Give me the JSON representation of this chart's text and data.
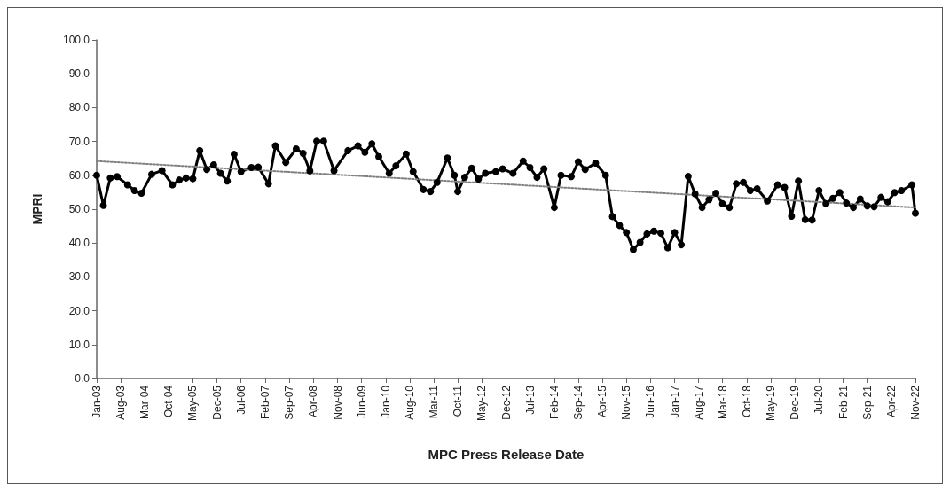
{
  "chart_data": {
    "type": "line",
    "xlabel": "MPC Press Release Date",
    "ylabel": "MPRI",
    "xlim": [
      "2003-01",
      "2022-11"
    ],
    "xticks": [
      {
        "value": "2003-01",
        "label": "Jan-03"
      },
      {
        "value": "2003-08",
        "label": "Aug-03"
      },
      {
        "value": "2004-03",
        "label": "Mar-04"
      },
      {
        "value": "2004-10",
        "label": "Oct-04"
      },
      {
        "value": "2005-05",
        "label": "May-05"
      },
      {
        "value": "2005-12",
        "label": "Dec-05"
      },
      {
        "value": "2006-07",
        "label": "Jul-06"
      },
      {
        "value": "2007-02",
        "label": "Feb-07"
      },
      {
        "value": "2007-09",
        "label": "Sep-07"
      },
      {
        "value": "2008-04",
        "label": "Apr-08"
      },
      {
        "value": "2008-11",
        "label": "Nov-08"
      },
      {
        "value": "2009-06",
        "label": "Jun-09"
      },
      {
        "value": "2010-01",
        "label": "Jan-10"
      },
      {
        "value": "2010-08",
        "label": "Aug-10"
      },
      {
        "value": "2011-03",
        "label": "Mar-11"
      },
      {
        "value": "2011-10",
        "label": "Oct-11"
      },
      {
        "value": "2012-05",
        "label": "May-12"
      },
      {
        "value": "2012-12",
        "label": "Dec-12"
      },
      {
        "value": "2013-07",
        "label": "Jul-13"
      },
      {
        "value": "2014-02",
        "label": "Feb-14"
      },
      {
        "value": "2014-09",
        "label": "Sep-14"
      },
      {
        "value": "2015-04",
        "label": "Apr-15"
      },
      {
        "value": "2015-11",
        "label": "Nov-15"
      },
      {
        "value": "2016-06",
        "label": "Jun-16"
      },
      {
        "value": "2017-01",
        "label": "Jan-17"
      },
      {
        "value": "2017-08",
        "label": "Aug-17"
      },
      {
        "value": "2018-03",
        "label": "Mar-18"
      },
      {
        "value": "2018-10",
        "label": "Oct-18"
      },
      {
        "value": "2019-05",
        "label": "May-19"
      },
      {
        "value": "2019-12",
        "label": "Dec-19"
      },
      {
        "value": "2020-07",
        "label": "Jul-20"
      },
      {
        "value": "2021-02",
        "label": "Feb-21"
      },
      {
        "value": "2021-09",
        "label": "Sep-21"
      },
      {
        "value": "2022-04",
        "label": "Apr-22"
      },
      {
        "value": "2022-11",
        "label": "Nov-22"
      }
    ],
    "ylim": [
      0,
      100
    ],
    "yticks": [
      {
        "value": 0,
        "label": "0.0"
      },
      {
        "value": 10,
        "label": "10.0"
      },
      {
        "value": 20,
        "label": "20.0"
      },
      {
        "value": 30,
        "label": "30.0"
      },
      {
        "value": 40,
        "label": "40.0"
      },
      {
        "value": 50,
        "label": "50.0"
      },
      {
        "value": 60,
        "label": "60.0"
      },
      {
        "value": 70,
        "label": "70.0"
      },
      {
        "value": 80,
        "label": "80.0"
      },
      {
        "value": 90,
        "label": "90.0"
      },
      {
        "value": 100,
        "label": "100.0"
      }
    ],
    "series": [
      {
        "color": "#000000",
        "marker": "circle",
        "line_style": "solid",
        "x": [
          "2003-01",
          "2003-03",
          "2003-05",
          "2003-07",
          "2003-10",
          "2003-12",
          "2004-02",
          "2004-05",
          "2004-08",
          "2004-11",
          "2005-01",
          "2005-03",
          "2005-05",
          "2005-07",
          "2005-09",
          "2005-11",
          "2006-01",
          "2006-03",
          "2006-05",
          "2006-07",
          "2006-10",
          "2006-12",
          "2007-03",
          "2007-05",
          "2007-08",
          "2007-11",
          "2008-01",
          "2008-03",
          "2008-05",
          "2008-07",
          "2008-10",
          "2009-02",
          "2009-05",
          "2009-07",
          "2009-09",
          "2009-11",
          "2010-02",
          "2010-04",
          "2010-07",
          "2010-09",
          "2010-12",
          "2011-02",
          "2011-04",
          "2011-07",
          "2011-09",
          "2011-10",
          "2011-12",
          "2012-02",
          "2012-04",
          "2012-06",
          "2012-09",
          "2012-11",
          "2013-02",
          "2013-05",
          "2013-07",
          "2013-09",
          "2013-11",
          "2014-02",
          "2014-04",
          "2014-07",
          "2014-09",
          "2014-11",
          "2015-02",
          "2015-05",
          "2015-07",
          "2015-09",
          "2015-11",
          "2016-01",
          "2016-03",
          "2016-05",
          "2016-07",
          "2016-09",
          "2016-11",
          "2017-01",
          "2017-03",
          "2017-05",
          "2017-07",
          "2017-09",
          "2017-11",
          "2018-01",
          "2018-03",
          "2018-05",
          "2018-07",
          "2018-09",
          "2018-11",
          "2019-01",
          "2019-04",
          "2019-07",
          "2019-09",
          "2019-11",
          "2020-01",
          "2020-03",
          "2020-05",
          "2020-07",
          "2020-09",
          "2020-11",
          "2021-01",
          "2021-03",
          "2021-05",
          "2021-07",
          "2021-09",
          "2021-11",
          "2022-01",
          "2022-03",
          "2022-05",
          "2022-07",
          "2022-10",
          "2022-11"
        ],
        "values": [
          60.0,
          51.1,
          59.2,
          59.6,
          57.2,
          55.5,
          54.7,
          60.3,
          61.4,
          57.2,
          58.6,
          59.2,
          59.0,
          67.3,
          61.7,
          63.1,
          60.6,
          58.3,
          66.2,
          61.1,
          62.3,
          62.4,
          57.5,
          68.7,
          63.8,
          67.8,
          66.5,
          61.3,
          70.1,
          70.1,
          61.4,
          67.3,
          68.7,
          66.8,
          69.3,
          65.5,
          60.6,
          62.8,
          66.3,
          61.1,
          55.8,
          55.2,
          57.9,
          65.1,
          60.0,
          55.2,
          59.4,
          62.1,
          58.9,
          60.6,
          61.1,
          61.9,
          60.6,
          64.2,
          62.3,
          59.4,
          61.9,
          50.5,
          60.0,
          59.6,
          64.0,
          61.7,
          63.6,
          60.0,
          47.8,
          45.2,
          43.1,
          38.1,
          40.2,
          42.7,
          43.5,
          42.9,
          38.6,
          43.1,
          39.5,
          59.7,
          54.5,
          50.5,
          52.8,
          54.7,
          51.6,
          50.5,
          57.5,
          57.9,
          55.5,
          56.0,
          52.4,
          57.2,
          56.4,
          47.9,
          58.3,
          46.9,
          46.8,
          55.5,
          51.6,
          53.2,
          54.9,
          51.8,
          50.5,
          53.0,
          51.0,
          50.7,
          53.5,
          52.2,
          54.9,
          55.5,
          57.2,
          48.8
        ]
      },
      {
        "color": "#808080",
        "marker": "none",
        "line_style": "dotted",
        "x": [
          "2003-01",
          "2022-11"
        ],
        "values": [
          64.2,
          50.5
        ]
      }
    ]
  }
}
